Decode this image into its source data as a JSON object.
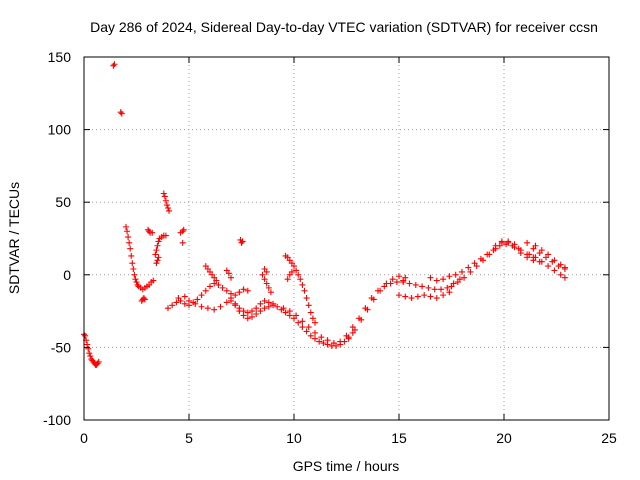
{
  "chart_data": {
    "type": "scatter",
    "title": "Day 286 of 2024, Sidereal Day-to-day VTEC variation (SDTVAR) for receiver ccsn",
    "xlabel": "GPS time / hours",
    "ylabel": "SDTVAR / TECUs",
    "xlim": [
      0,
      25
    ],
    "ylim": [
      -100,
      150
    ],
    "xticks": [
      0,
      5,
      10,
      15,
      20,
      25
    ],
    "yticks": [
      -100,
      -50,
      0,
      50,
      100,
      150
    ],
    "grid": true,
    "legend": "none",
    "marker": "plus",
    "color": "#ff0000",
    "series": [
      {
        "name": "SDTVAR",
        "points": [
          [
            0.0,
            -41
          ],
          [
            0.05,
            -42
          ],
          [
            0.1,
            -45
          ],
          [
            0.15,
            -48
          ],
          [
            0.2,
            -51
          ],
          [
            0.25,
            -54
          ],
          [
            0.3,
            -56
          ],
          [
            0.35,
            -58
          ],
          [
            0.4,
            -59
          ],
          [
            0.45,
            -60
          ],
          [
            0.5,
            -61
          ],
          [
            0.55,
            -62
          ],
          [
            0.6,
            -62
          ],
          [
            0.65,
            -61
          ],
          [
            0.7,
            -60
          ],
          [
            1.4,
            144
          ],
          [
            1.45,
            145
          ],
          [
            1.75,
            112
          ],
          [
            1.8,
            111
          ],
          [
            2.0,
            33
          ],
          [
            2.05,
            30
          ],
          [
            2.1,
            26
          ],
          [
            2.15,
            22
          ],
          [
            2.2,
            18
          ],
          [
            2.25,
            13
          ],
          [
            2.3,
            8
          ],
          [
            2.35,
            4
          ],
          [
            2.4,
            0
          ],
          [
            2.45,
            -3
          ],
          [
            2.5,
            -5
          ],
          [
            2.55,
            -7
          ],
          [
            2.6,
            -8
          ],
          [
            2.7,
            -9
          ],
          [
            2.8,
            -10
          ],
          [
            2.9,
            -9
          ],
          [
            3.0,
            -8
          ],
          [
            3.1,
            -7
          ],
          [
            3.2,
            -5
          ],
          [
            3.3,
            -4
          ],
          [
            2.75,
            -18
          ],
          [
            2.8,
            -17
          ],
          [
            2.85,
            -16
          ],
          [
            2.9,
            -17
          ],
          [
            3.05,
            31
          ],
          [
            3.1,
            30
          ],
          [
            3.15,
            29
          ],
          [
            3.25,
            29
          ],
          [
            3.4,
            14
          ],
          [
            3.45,
            17
          ],
          [
            3.5,
            20
          ],
          [
            3.55,
            23
          ],
          [
            3.6,
            25
          ],
          [
            3.7,
            26
          ],
          [
            3.8,
            27
          ],
          [
            3.9,
            27
          ],
          [
            3.45,
            8
          ],
          [
            3.5,
            10
          ],
          [
            3.55,
            12
          ],
          [
            3.8,
            56
          ],
          [
            3.85,
            54
          ],
          [
            3.9,
            51
          ],
          [
            3.95,
            48
          ],
          [
            4.0,
            46
          ],
          [
            4.05,
            44
          ],
          [
            4.6,
            29
          ],
          [
            4.7,
            30
          ],
          [
            4.75,
            31
          ],
          [
            4.7,
            22
          ],
          [
            4.0,
            -23
          ],
          [
            4.2,
            -21
          ],
          [
            4.4,
            -19
          ],
          [
            4.6,
            -18
          ],
          [
            4.8,
            -20
          ],
          [
            5.0,
            -21
          ],
          [
            5.2,
            -19
          ],
          [
            5.4,
            -17
          ],
          [
            5.6,
            -14
          ],
          [
            5.8,
            -11
          ],
          [
            6.0,
            -8
          ],
          [
            6.2,
            -6
          ],
          [
            6.4,
            -7
          ],
          [
            6.6,
            -9
          ],
          [
            6.8,
            -11
          ],
          [
            7.0,
            -13
          ],
          [
            7.2,
            -14
          ],
          [
            7.4,
            -12
          ],
          [
            7.6,
            -10
          ],
          [
            7.8,
            -11
          ],
          [
            4.5,
            -16
          ],
          [
            4.8,
            -15
          ],
          [
            5.0,
            -18
          ],
          [
            5.3,
            -20
          ],
          [
            5.6,
            -22
          ],
          [
            5.9,
            -23
          ],
          [
            6.2,
            -24
          ],
          [
            6.5,
            -22
          ],
          [
            6.8,
            -19
          ],
          [
            7.0,
            -18
          ],
          [
            7.2,
            -21
          ],
          [
            7.4,
            -25
          ],
          [
            7.6,
            -28
          ],
          [
            7.8,
            -30
          ],
          [
            8.0,
            -29
          ],
          [
            8.2,
            -27
          ],
          [
            8.4,
            -25
          ],
          [
            8.6,
            -23
          ],
          [
            8.8,
            -22
          ],
          [
            9.0,
            -21
          ],
          [
            5.8,
            6
          ],
          [
            5.9,
            4
          ],
          [
            6.0,
            2
          ],
          [
            6.1,
            0
          ],
          [
            6.2,
            -2
          ],
          [
            6.3,
            -4
          ],
          [
            6.8,
            3
          ],
          [
            6.9,
            1
          ],
          [
            7.0,
            -2
          ],
          [
            7.45,
            24
          ],
          [
            7.5,
            22
          ],
          [
            7.55,
            23
          ],
          [
            7.0,
            -16
          ],
          [
            7.2,
            -20
          ],
          [
            7.4,
            -23
          ],
          [
            7.6,
            -25
          ],
          [
            7.8,
            -26
          ],
          [
            8.0,
            -25
          ],
          [
            8.2,
            -23
          ],
          [
            8.4,
            -20
          ],
          [
            8.6,
            -18
          ],
          [
            8.8,
            -19
          ],
          [
            8.5,
            0
          ],
          [
            8.6,
            -3
          ],
          [
            8.7,
            -6
          ],
          [
            8.8,
            -9
          ],
          [
            8.9,
            -12
          ],
          [
            8.6,
            4
          ],
          [
            8.7,
            2
          ],
          [
            9.6,
            13
          ],
          [
            9.7,
            12
          ],
          [
            9.8,
            10
          ],
          [
            9.9,
            8
          ],
          [
            10.0,
            6
          ],
          [
            10.1,
            3
          ],
          [
            10.2,
            0
          ],
          [
            10.3,
            -3
          ],
          [
            10.4,
            -7
          ],
          [
            10.5,
            -11
          ],
          [
            10.6,
            -16
          ],
          [
            10.7,
            -21
          ],
          [
            10.8,
            -26
          ],
          [
            10.9,
            -30
          ],
          [
            11.0,
            -33
          ],
          [
            9.7,
            -3
          ],
          [
            9.8,
            0
          ],
          [
            9.9,
            2
          ],
          [
            9.0,
            -20
          ],
          [
            9.2,
            -22
          ],
          [
            9.4,
            -24
          ],
          [
            9.6,
            -26
          ],
          [
            9.8,
            -28
          ],
          [
            10.0,
            -30
          ],
          [
            10.2,
            -33
          ],
          [
            10.4,
            -36
          ],
          [
            10.6,
            -39
          ],
          [
            10.8,
            -42
          ],
          [
            11.0,
            -44
          ],
          [
            11.2,
            -46
          ],
          [
            11.4,
            -47
          ],
          [
            11.6,
            -48
          ],
          [
            11.8,
            -49
          ],
          [
            12.0,
            -49
          ],
          [
            12.2,
            -48
          ],
          [
            12.4,
            -46
          ],
          [
            12.6,
            -44
          ],
          [
            12.8,
            -40
          ],
          [
            9.5,
            -23
          ],
          [
            9.8,
            -25
          ],
          [
            10.1,
            -28
          ],
          [
            10.4,
            -32
          ],
          [
            10.7,
            -36
          ],
          [
            11.0,
            -40
          ],
          [
            11.3,
            -43
          ],
          [
            11.6,
            -45
          ],
          [
            11.9,
            -47
          ],
          [
            12.2,
            -46
          ],
          [
            12.5,
            -42
          ],
          [
            12.8,
            -36
          ],
          [
            13.1,
            -30
          ],
          [
            13.4,
            -23
          ],
          [
            13.7,
            -16
          ],
          [
            14.0,
            -11
          ],
          [
            14.3,
            -8
          ],
          [
            14.6,
            -6
          ],
          [
            14.9,
            -5
          ],
          [
            15.2,
            -5
          ],
          [
            12.6,
            -43
          ],
          [
            12.9,
            -38
          ],
          [
            13.2,
            -31
          ],
          [
            13.5,
            -24
          ],
          [
            13.8,
            -17
          ],
          [
            14.1,
            -11
          ],
          [
            14.4,
            -6
          ],
          [
            14.7,
            -3
          ],
          [
            15.0,
            -1
          ],
          [
            15.3,
            -2
          ],
          [
            15.0,
            -14
          ],
          [
            15.3,
            -15
          ],
          [
            15.6,
            -16
          ],
          [
            15.9,
            -15
          ],
          [
            16.2,
            -14
          ],
          [
            16.5,
            -15
          ],
          [
            16.8,
            -16
          ],
          [
            17.1,
            -14
          ],
          [
            17.4,
            -12
          ],
          [
            15.2,
            -4
          ],
          [
            15.5,
            -6
          ],
          [
            15.8,
            -7
          ],
          [
            16.1,
            -8
          ],
          [
            16.4,
            -9
          ],
          [
            16.7,
            -10
          ],
          [
            17.0,
            -10
          ],
          [
            17.3,
            -9
          ],
          [
            17.6,
            -6
          ],
          [
            17.9,
            -3
          ],
          [
            16.5,
            -2
          ],
          [
            16.8,
            -4
          ],
          [
            17.1,
            -3
          ],
          [
            17.4,
            -1
          ],
          [
            17.7,
            0
          ],
          [
            18.0,
            2
          ],
          [
            18.3,
            5
          ],
          [
            18.6,
            8
          ],
          [
            18.9,
            11
          ],
          [
            19.2,
            14
          ],
          [
            19.5,
            17
          ],
          [
            19.8,
            20
          ],
          [
            20.1,
            21
          ],
          [
            20.4,
            20
          ],
          [
            20.7,
            18
          ],
          [
            17.5,
            -8
          ],
          [
            17.8,
            -5
          ],
          [
            18.1,
            -2
          ],
          [
            18.4,
            2
          ],
          [
            18.7,
            6
          ],
          [
            19.0,
            10
          ],
          [
            19.3,
            14
          ],
          [
            19.6,
            18
          ],
          [
            19.9,
            22
          ],
          [
            20.2,
            23
          ],
          [
            20.5,
            21
          ],
          [
            20.8,
            17
          ],
          [
            21.1,
            14
          ],
          [
            21.4,
            12
          ],
          [
            19.6,
            20
          ],
          [
            19.9,
            23
          ],
          [
            20.2,
            22
          ],
          [
            20.5,
            19
          ],
          [
            20.8,
            15
          ],
          [
            21.1,
            12
          ],
          [
            21.4,
            10
          ],
          [
            21.7,
            9
          ],
          [
            21.1,
            22
          ],
          [
            21.4,
            18
          ],
          [
            21.7,
            15
          ],
          [
            22.0,
            12
          ],
          [
            22.3,
            9
          ],
          [
            22.6,
            6
          ],
          [
            22.9,
            4
          ],
          [
            21.2,
            14
          ],
          [
            21.5,
            12
          ],
          [
            21.8,
            9
          ],
          [
            22.1,
            6
          ],
          [
            22.4,
            3
          ],
          [
            22.7,
            0
          ],
          [
            22.9,
            -2
          ],
          [
            21.5,
            20
          ],
          [
            21.8,
            17
          ],
          [
            22.1,
            14
          ],
          [
            22.4,
            10
          ],
          [
            22.7,
            7
          ],
          [
            22.9,
            5
          ]
        ]
      }
    ]
  }
}
